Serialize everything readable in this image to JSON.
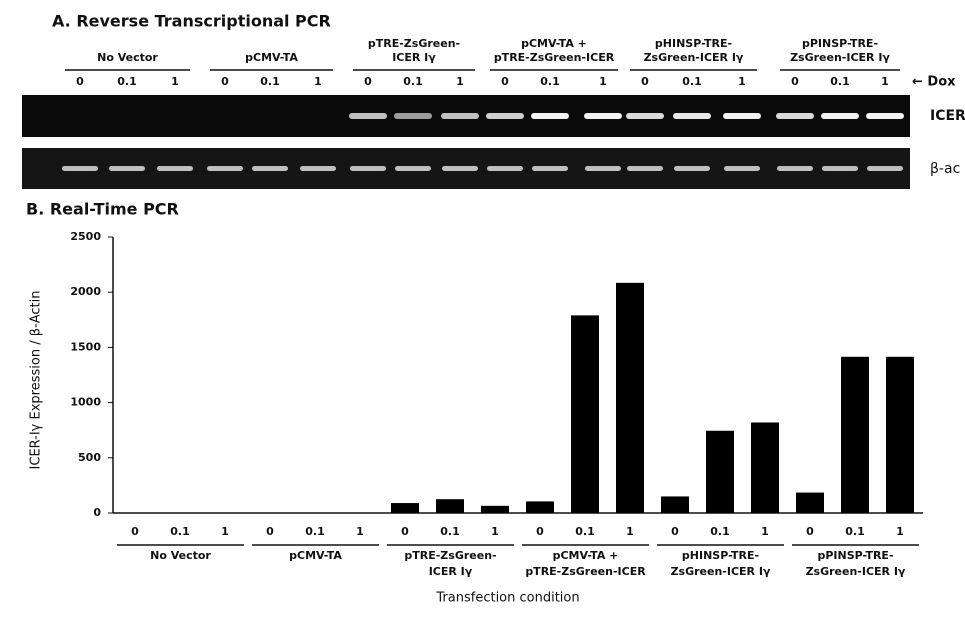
{
  "panel_a": {
    "title": "A. Reverse Transcriptional PCR",
    "groups": [
      [
        "No Vector"
      ],
      [
        "pCMV-TA"
      ],
      [
        "pTRE-ZsGreen-",
        "ICER  Iγ"
      ],
      [
        "pCMV-TA +",
        "pTRE-ZsGreen-ICER"
      ],
      [
        "pHINSP-TRE-",
        "ZsGreen-ICER Iγ"
      ],
      [
        "pPINSP-TRE-",
        "ZsGreen-ICER Iγ"
      ]
    ],
    "doses": [
      "0",
      "0.1",
      "1",
      "0",
      "0.1",
      "1",
      "0",
      "0.1",
      "1",
      "0",
      "0.1",
      "1",
      "0",
      "0.1",
      "1",
      "0",
      "0.1",
      "1"
    ],
    "dox_label": "← Dox",
    "gene_labels": [
      "ICER",
      "β-ac"
    ]
  },
  "chart_data": {
    "type": "bar",
    "title": "B. Real-Time PCR",
    "y_label": "ICER-Iγ Expression / β-Actin",
    "x_label": "Transfection condition",
    "categories": [
      "0",
      "0.1",
      "1",
      "0",
      "0.1",
      "1",
      "0",
      "0.1",
      "1",
      "0",
      "0.1",
      "1",
      "0",
      "0.1",
      "1",
      "0",
      "0.1",
      "1"
    ],
    "groups": [
      [
        "No Vector"
      ],
      [
        "pCMV-TA"
      ],
      [
        "pTRE-ZsGreen-",
        "ICER  Iγ"
      ],
      [
        "pCMV-TA +",
        "pTRE-ZsGreen-ICER"
      ],
      [
        "pHINSP-TRE-",
        "ZsGreen-ICER Iγ"
      ],
      [
        "pPINSP-TRE-",
        "ZsGreen-ICER Iγ"
      ]
    ],
    "values": [
      0,
      0,
      0,
      0,
      0,
      0,
      90,
      125,
      65,
      105,
      1790,
      2085,
      150,
      745,
      820,
      185,
      1415,
      1415
    ],
    "color": "#000000",
    "ylim": [
      0,
      2500
    ],
    "yticks": [
      0,
      500,
      1000,
      1500,
      2000,
      2500
    ],
    "grid": false
  }
}
